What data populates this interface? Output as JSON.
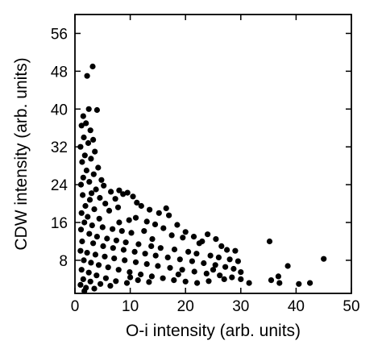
{
  "chart_data": {
    "type": "scatter",
    "title": "",
    "xlabel": "O-i intensity (arb. units)",
    "ylabel": "CDW intensity (arb. units)",
    "xlim": [
      0,
      50
    ],
    "ylim": [
      1,
      60
    ],
    "xticks": [
      0,
      10,
      20,
      30,
      40,
      50
    ],
    "yticks": [
      8,
      16,
      24,
      32,
      40,
      48,
      56
    ],
    "grid": false,
    "legend": "none",
    "marker_color": "#000000",
    "axis_color": "#000000",
    "series": [
      {
        "points": [
          [
            2.2,
            47.0
          ],
          [
            3.2,
            49.0
          ],
          [
            2.5,
            40.0
          ],
          [
            4.0,
            39.8
          ],
          [
            1.5,
            38.5
          ],
          [
            1.2,
            36.5
          ],
          [
            2.0,
            37.0
          ],
          [
            2.8,
            35.5
          ],
          [
            1.6,
            34.0
          ],
          [
            3.3,
            33.5
          ],
          [
            1.0,
            32.0
          ],
          [
            2.4,
            32.8
          ],
          [
            3.6,
            31.0
          ],
          [
            1.8,
            30.2
          ],
          [
            2.9,
            29.5
          ],
          [
            1.3,
            28.8
          ],
          [
            4.2,
            27.6
          ],
          [
            2.1,
            27.0
          ],
          [
            3.4,
            26.2
          ],
          [
            1.5,
            25.5
          ],
          [
            4.8,
            25.0
          ],
          [
            2.6,
            24.6
          ],
          [
            1.1,
            24.0
          ],
          [
            5.2,
            23.8
          ],
          [
            3.8,
            23.0
          ],
          [
            6.5,
            22.5
          ],
          [
            8.0,
            22.8
          ],
          [
            8.7,
            22.0
          ],
          [
            9.5,
            22.3
          ],
          [
            7.3,
            21.0
          ],
          [
            10.5,
            21.5
          ],
          [
            11.2,
            20.2
          ],
          [
            12.0,
            19.5
          ],
          [
            13.5,
            18.7
          ],
          [
            15.2,
            18.0
          ],
          [
            16.5,
            19.0
          ],
          [
            17.0,
            17.5
          ],
          [
            11.0,
            17.0
          ],
          [
            9.8,
            16.5
          ],
          [
            13.0,
            16.2
          ],
          [
            18.5,
            15.5
          ],
          [
            20.0,
            14.0
          ],
          [
            21.5,
            13.0
          ],
          [
            24.0,
            13.5
          ],
          [
            25.5,
            12.5
          ],
          [
            22.5,
            11.6
          ],
          [
            26.5,
            11.0
          ],
          [
            27.5,
            10.2
          ],
          [
            29.0,
            10.0
          ],
          [
            23.0,
            12.0
          ],
          [
            19.5,
            12.8
          ],
          [
            17.5,
            13.3
          ],
          [
            16.0,
            14.8
          ],
          [
            14.5,
            15.6
          ],
          [
            12.5,
            14.2
          ],
          [
            6.2,
            18.5
          ],
          [
            5.5,
            20.0
          ],
          [
            7.8,
            19.2
          ],
          [
            4.5,
            21.2
          ],
          [
            3.0,
            22.2
          ],
          [
            1.4,
            21.8
          ],
          [
            2.7,
            20.8
          ],
          [
            1.9,
            19.5
          ],
          [
            3.5,
            18.8
          ],
          [
            1.2,
            18.0
          ],
          [
            2.3,
            17.2
          ],
          [
            4.4,
            16.8
          ],
          [
            1.7,
            16.0
          ],
          [
            3.1,
            15.4
          ],
          [
            5.0,
            15.0
          ],
          [
            6.8,
            14.6
          ],
          [
            8.5,
            14.2
          ],
          [
            10.2,
            13.8
          ],
          [
            1.1,
            14.5
          ],
          [
            2.6,
            13.6
          ],
          [
            4.0,
            13.0
          ],
          [
            5.8,
            12.6
          ],
          [
            7.5,
            12.2
          ],
          [
            9.2,
            11.8
          ],
          [
            11.5,
            11.4
          ],
          [
            13.8,
            11.0
          ],
          [
            15.5,
            10.6
          ],
          [
            18.0,
            10.3
          ],
          [
            20.5,
            9.8
          ],
          [
            22.0,
            9.4
          ],
          [
            24.5,
            9.0
          ],
          [
            26.0,
            8.6
          ],
          [
            28.0,
            8.2
          ],
          [
            29.5,
            7.8
          ],
          [
            1.3,
            12.0
          ],
          [
            3.3,
            11.6
          ],
          [
            5.1,
            11.0
          ],
          [
            6.9,
            10.6
          ],
          [
            8.8,
            10.2
          ],
          [
            10.8,
            9.8
          ],
          [
            12.7,
            9.4
          ],
          [
            14.6,
            9.0
          ],
          [
            16.8,
            8.6
          ],
          [
            19.0,
            8.2
          ],
          [
            21.2,
            7.8
          ],
          [
            23.3,
            7.4
          ],
          [
            25.4,
            7.0
          ],
          [
            27.2,
            6.6
          ],
          [
            28.7,
            6.2
          ],
          [
            1.0,
            10.0
          ],
          [
            2.2,
            9.6
          ],
          [
            3.7,
            9.2
          ],
          [
            5.4,
            8.8
          ],
          [
            7.1,
            8.4
          ],
          [
            9.0,
            8.0
          ],
          [
            11.0,
            7.6
          ],
          [
            13.0,
            7.2
          ],
          [
            15.0,
            6.8
          ],
          [
            17.2,
            6.4
          ],
          [
            19.4,
            6.0
          ],
          [
            21.6,
            5.6
          ],
          [
            23.8,
            5.2
          ],
          [
            26.2,
            4.8
          ],
          [
            28.4,
            4.4
          ],
          [
            30.0,
            4.0
          ],
          [
            1.6,
            8.0
          ],
          [
            2.9,
            7.5
          ],
          [
            4.3,
            7.0
          ],
          [
            6.0,
            6.5
          ],
          [
            7.9,
            6.0
          ],
          [
            9.9,
            5.5
          ],
          [
            11.9,
            5.0
          ],
          [
            13.9,
            4.6
          ],
          [
            15.9,
            4.2
          ],
          [
            17.9,
            3.8
          ],
          [
            20.0,
            3.5
          ],
          [
            22.1,
            3.2
          ],
          [
            24.2,
            3.6
          ],
          [
            1.2,
            6.0
          ],
          [
            2.5,
            5.4
          ],
          [
            3.9,
            4.8
          ],
          [
            5.6,
            4.2
          ],
          [
            7.4,
            3.6
          ],
          [
            9.4,
            3.2
          ],
          [
            11.4,
            3.8
          ],
          [
            13.4,
            3.4
          ],
          [
            1.5,
            4.0
          ],
          [
            2.8,
            3.5
          ],
          [
            4.6,
            3.0
          ],
          [
            6.4,
            2.6
          ],
          [
            1.0,
            2.8
          ],
          [
            2.0,
            2.2
          ],
          [
            3.5,
            2.0
          ],
          [
            1.7,
            1.5
          ],
          [
            35.2,
            12.0
          ],
          [
            38.5,
            6.8
          ],
          [
            45.0,
            8.3
          ],
          [
            36.8,
            4.6
          ],
          [
            35.5,
            3.8
          ],
          [
            37.0,
            3.2
          ],
          [
            40.5,
            3.0
          ],
          [
            42.5,
            3.2
          ],
          [
            30.0,
            5.5
          ],
          [
            31.5,
            3.2
          ],
          [
            10.0,
            4.4
          ],
          [
            18.7,
            5.0
          ],
          [
            25.0,
            6.0
          ],
          [
            27.0,
            4.0
          ],
          [
            14.0,
            12.5
          ],
          [
            8.0,
            16.0
          ]
        ]
      }
    ]
  }
}
